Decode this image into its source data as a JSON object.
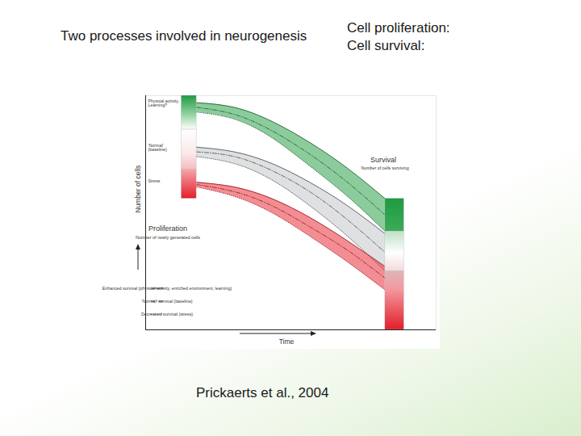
{
  "slide": {
    "title": "Two processes involved in neurogenesis",
    "notes": [
      "Cell proliferation:",
      "Cell survival:"
    ],
    "caption": "Prickaerts et al., 2004"
  },
  "chart_data": {
    "type": "area",
    "x_label": "Time",
    "y_label": "Number of cells",
    "x": [
      0,
      20,
      40,
      60,
      80,
      100
    ],
    "xlim": [
      -27,
      127
    ],
    "ylim": [
      0,
      100
    ],
    "xticks": [],
    "yticks": [],
    "tick_labels": false,
    "annotations": [
      {
        "title": "Proliferation",
        "subtitle": "Number of newly generated cells"
      },
      {
        "title": "Survival",
        "subtitle": "Number of cells surviving"
      }
    ],
    "series": [
      {
        "name": "Enhanced survival (physical activity, enriched environment, learning)",
        "line_style": "solid"
      },
      {
        "name": "'Normal' survival (baseline)",
        "line_style": "dashdot"
      },
      {
        "name": "Decreased survival (stress)",
        "line_style": "dotted"
      }
    ],
    "bands": [
      {
        "name": "Physical activity, Learning?",
        "color": "#2ea04a",
        "values": [
          [
            97,
            95,
            89,
            80,
            69,
            56
          ],
          [
            95,
            92,
            85,
            75,
            63,
            49
          ],
          [
            93,
            90,
            82,
            70,
            57,
            42
          ]
        ]
      },
      {
        "name": "'Normal' (baseline)",
        "color": "#c3c6c9",
        "values": [
          [
            78,
            76,
            71,
            63,
            53,
            41
          ],
          [
            76,
            74,
            68,
            59,
            47,
            33
          ],
          [
            74,
            71,
            64,
            53,
            40,
            25
          ]
        ]
      },
      {
        "name": "Stress",
        "color": "#e8323a",
        "values": [
          [
            63,
            61,
            56,
            48,
            38,
            27
          ],
          [
            62,
            59,
            53,
            44,
            34,
            22
          ],
          [
            61,
            57,
            50,
            40,
            29,
            17
          ]
        ]
      }
    ]
  }
}
